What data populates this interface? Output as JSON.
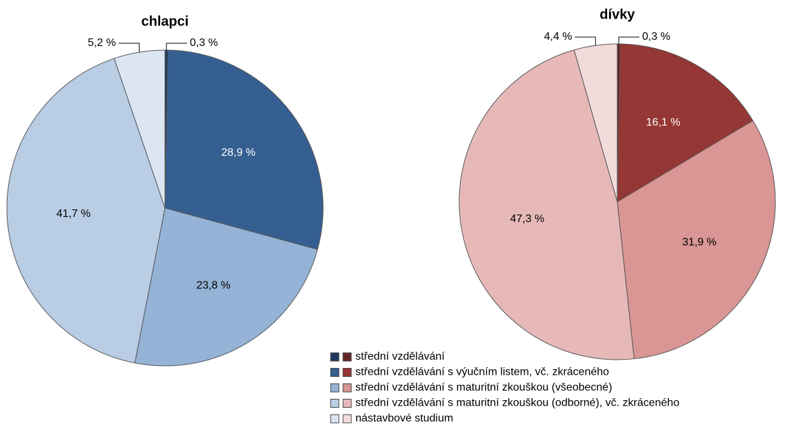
{
  "chart_data": [
    {
      "type": "pie",
      "title": "chlapci",
      "values": [
        0.3,
        28.9,
        23.8,
        41.7,
        5.2
      ],
      "value_labels": [
        "0,3 %",
        "28,9 %",
        "23,8 %",
        "41,7 %",
        "5,2 %"
      ],
      "colors": [
        "#1f3a5f",
        "#365f91",
        "#95b3d7",
        "#b9cde5",
        "#dce6f2"
      ]
    },
    {
      "type": "pie",
      "title": "dívky",
      "values": [
        0.3,
        16.1,
        31.9,
        47.3,
        4.4
      ],
      "value_labels": [
        "0,3 %",
        "16,1 %",
        "31,9 %",
        "47,3 %",
        "4,4 %"
      ],
      "colors": [
        "#632523",
        "#953735",
        "#d99694",
        "#e6b9b8",
        "#f2dcdb"
      ]
    }
  ],
  "legend": {
    "labels": [
      "střední vzdělávání",
      "střední vzdělávání s výučním listem, vč. zkráceného",
      "střední vzdělávání s maturitní zkouškou (všeobecné)",
      "střední vzdělávání s maturitní zkouškou (odborné), vč. zkráceného",
      "nástavbové studium"
    ]
  }
}
